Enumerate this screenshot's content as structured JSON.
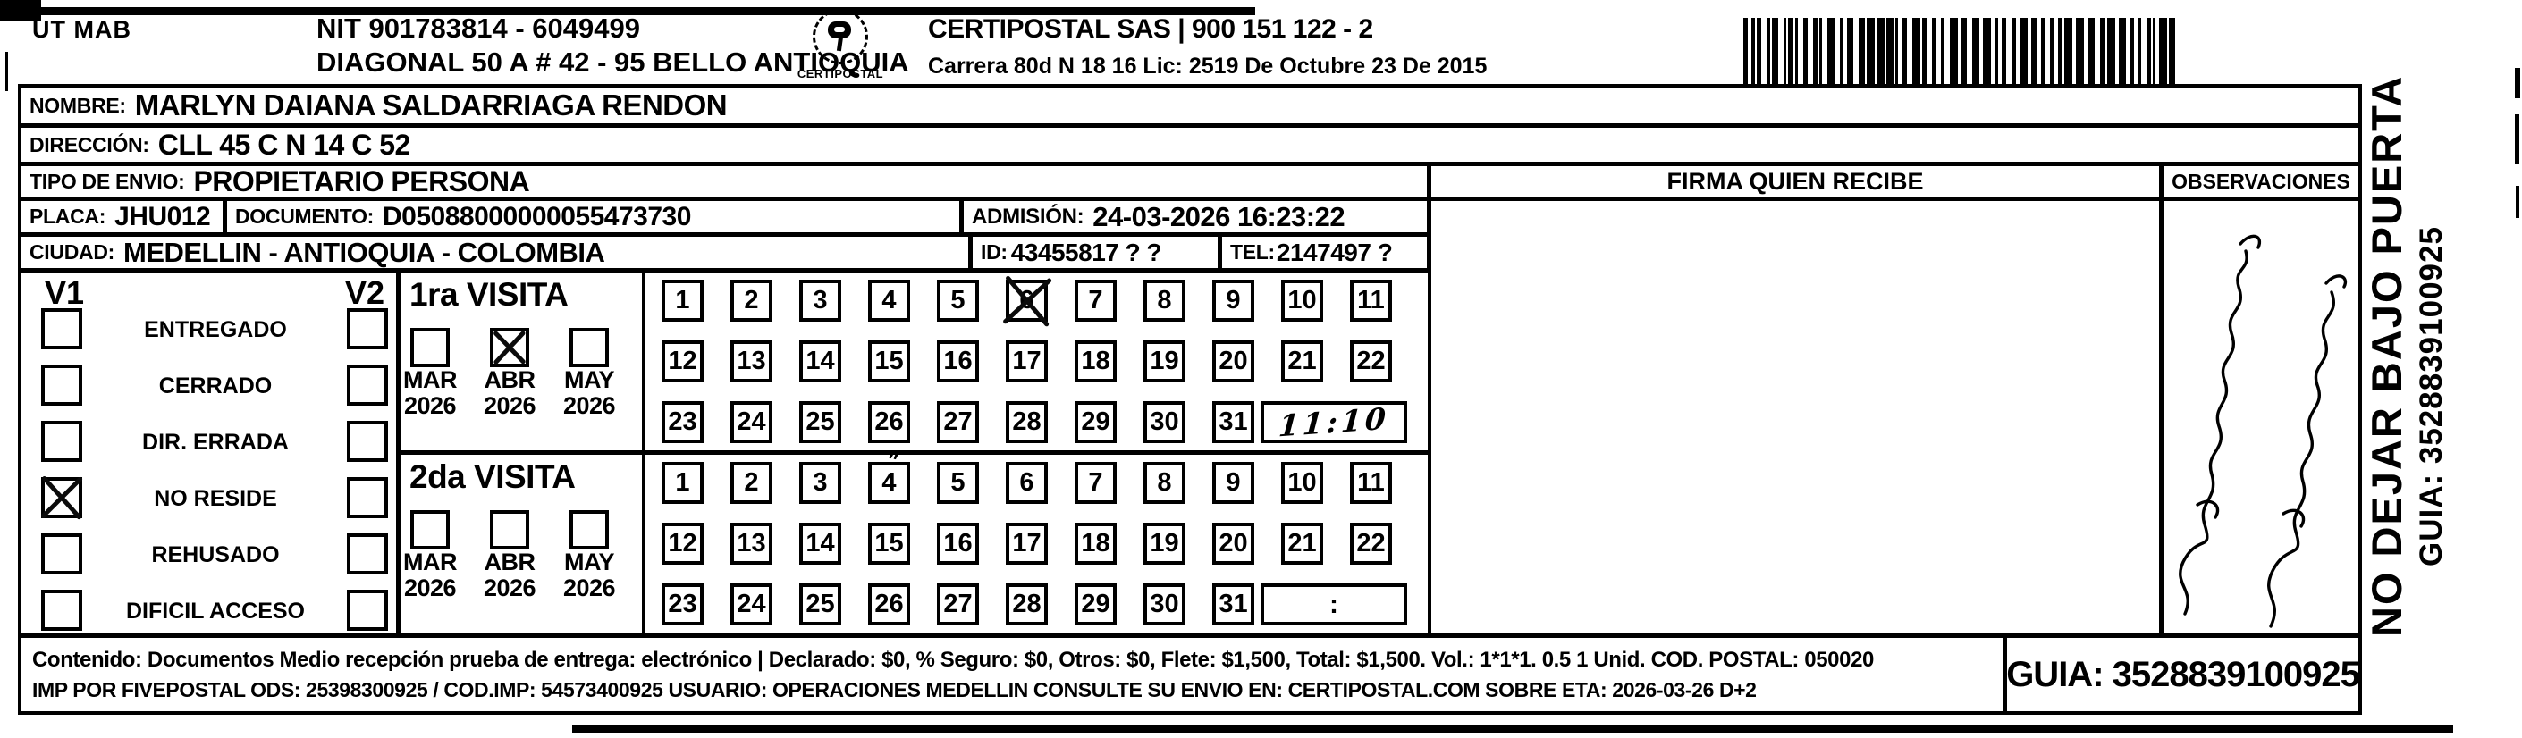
{
  "header": {
    "sender_code": "UT MAB",
    "nit": "NIT 901783814 - 6049499",
    "sender_address": "DIAGONAL 50 A # 42 - 95  BELLO  ANTIOQUIA",
    "logo_text": "CERTIPOSTAL",
    "logo_tagline": "· · · · · · · · · ·",
    "company": "CERTIPOSTAL SAS | 900 151 122 - 2",
    "company_address": "Carrera 80d N 18 16  Lic: 2519 De Octubre 23 De 2015"
  },
  "recipient": {
    "nombre_label": "NOMBRE:",
    "nombre": "MARLYN DAIANA SALDARRIAGA RENDON",
    "direccion_label": "DIRECCIÓN:",
    "direccion": "CLL 45 C N 14 C 52",
    "tipo_label": "TIPO DE ENVIO:",
    "tipo": "PROPIETARIO PERSONA",
    "placa_label": "PLACA:",
    "placa": "JHU012",
    "documento_label": "DOCUMENTO:",
    "documento": "D05088000000055473730",
    "admision_label": "ADMISIÓN:",
    "admision": "24-03-2026 16:23:22",
    "ciudad_label": "CIUDAD:",
    "ciudad": "MEDELLIN - ANTIOQUIA - COLOMBIA",
    "id_label": "ID:",
    "id": "43455817 ? ?",
    "tel_label": "TEL:",
    "tel": "2147497 ?"
  },
  "section_headers": {
    "firma": "FIRMA QUIEN RECIBE",
    "observaciones": "OBSERVACIONES"
  },
  "status": {
    "v1_label": "V1",
    "v2_label": "V2",
    "options": [
      {
        "label": "ENTREGADO",
        "v1": false,
        "v2": false
      },
      {
        "label": "CERRADO",
        "v1": false,
        "v2": false
      },
      {
        "label": "DIR. ERRADA",
        "v1": false,
        "v2": false
      },
      {
        "label": "NO RESIDE",
        "v1": true,
        "v2": false
      },
      {
        "label": "REHUSADO",
        "v1": false,
        "v2": false
      },
      {
        "label": "DIFICIL ACCESO",
        "v1": false,
        "v2": false
      }
    ]
  },
  "visits": [
    {
      "title": "1ra VISITA",
      "months": [
        {
          "name": "MAR",
          "year": "2026",
          "checked": false
        },
        {
          "name": "ABR",
          "year": "2026",
          "checked": true
        },
        {
          "name": "MAY",
          "year": "2026",
          "checked": false
        }
      ],
      "day_rows": [
        [
          1,
          2,
          3,
          4,
          5,
          6,
          7,
          8,
          9,
          10,
          11
        ],
        [
          12,
          13,
          14,
          15,
          16,
          17,
          18,
          19,
          20,
          21,
          22
        ],
        [
          23,
          24,
          25,
          26,
          27,
          28,
          29,
          30,
          31
        ]
      ],
      "crossed_day": 6,
      "time": "11:10",
      "time_handwritten": true
    },
    {
      "title": "2da VISITA",
      "months": [
        {
          "name": "MAR",
          "year": "2026",
          "checked": false
        },
        {
          "name": "ABR",
          "year": "2026",
          "checked": false
        },
        {
          "name": "MAY",
          "year": "2026",
          "checked": false
        }
      ],
      "day_rows": [
        [
          1,
          2,
          3,
          4,
          5,
          6,
          7,
          8,
          9,
          10,
          11
        ],
        [
          12,
          13,
          14,
          15,
          16,
          17,
          18,
          19,
          20,
          21,
          22
        ],
        [
          23,
          24,
          25,
          26,
          27,
          28,
          29,
          30,
          31
        ]
      ],
      "crossed_day": null,
      "annotation": {
        "day": 4,
        "mark": "″"
      },
      "time": ":",
      "time_handwritten": false
    }
  ],
  "side": {
    "warning": "NO DEJAR BAJO PUERTA",
    "guia_vertical": "GUIA: 3528839100925"
  },
  "footer": {
    "line1": "Contenido: Documentos Medio recepción prueba de entrega: electrónico | Declarado: $0, % Seguro: $0, Otros: $0, Flete: $1,500, Total: $1,500. Vol.: 1*1*1. 0.5  1 Unid. COD. POSTAL: 050020",
    "line2": "IMP POR FIVEPOSTAL ODS: 25398300925 / COD.IMP: 54573400925 USUARIO: OPERACIONES MEDELLIN CONSULTE SU ENVIO EN: CERTIPOSTAL.COM SOBRE ETA: 2026-03-26 D+2",
    "guia": "GUIA: 3528839100925"
  }
}
